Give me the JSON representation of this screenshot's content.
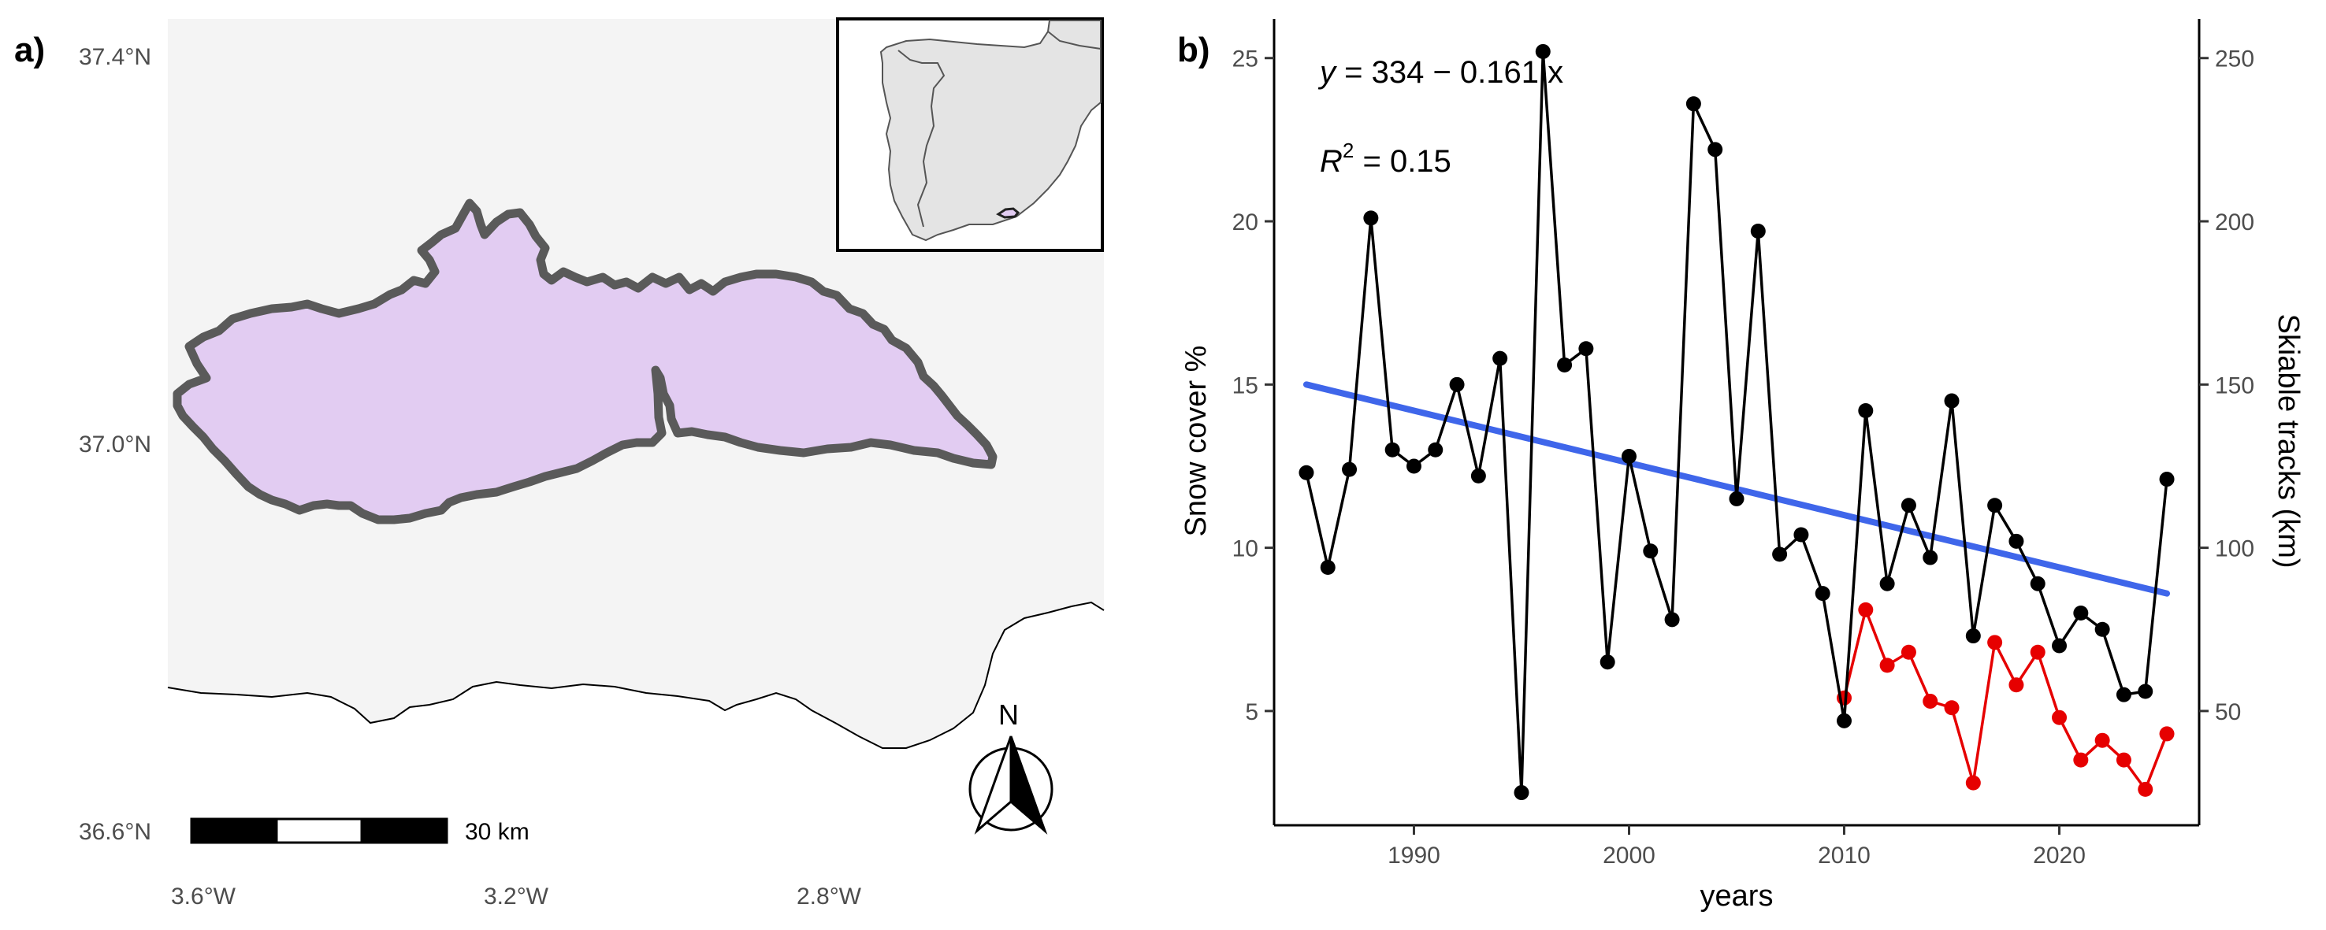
{
  "panel_a": {
    "label": "a)",
    "lat_ticks": [
      "37.4°N",
      "37.0°N",
      "36.6°N"
    ],
    "lon_ticks": [
      "3.6°W",
      "3.2°W",
      "2.8°W"
    ],
    "scale_bar_label": "30 km",
    "north_label": "N",
    "colors": {
      "region_fill": "#e2ccf2",
      "region_outline": "#5a5a5a",
      "land": "#f4f4f4"
    }
  },
  "panel_b": {
    "label": "b)",
    "equation": {
      "prefix": "y",
      "rest": " = 334 − 0.161 x"
    },
    "r2": {
      "prefix": "R",
      "sup": "2",
      "rest": " = 0.15"
    }
  },
  "chart_data": {
    "type": "line",
    "xlabel": "years",
    "ylabel": "Snow cover %",
    "y2label": "Skiable tracks (km)",
    "xlim": [
      1983.5,
      2026.5
    ],
    "ylim": [
      1.5,
      26.2
    ],
    "y2lim": [
      15,
      262
    ],
    "x_ticks": [
      1990,
      2000,
      2010,
      2020
    ],
    "y_ticks": [
      5,
      10,
      15,
      20,
      25
    ],
    "y2_ticks": [
      50,
      100,
      150,
      200,
      250
    ],
    "grid": false,
    "legend": "none",
    "series": [
      {
        "color": "#000000",
        "axis": "left",
        "x": [
          1985,
          1986,
          1987,
          1988,
          1989,
          1990,
          1991,
          1992,
          1993,
          1994,
          1995,
          1996,
          1997,
          1998,
          1999,
          2000,
          2001,
          2002,
          2003,
          2004,
          2005,
          2006,
          2007,
          2008,
          2009,
          2010,
          2011,
          2012,
          2013,
          2014,
          2015,
          2016,
          2017,
          2018,
          2019,
          2020,
          2021,
          2022,
          2023,
          2024,
          2025
        ],
        "values": [
          12.3,
          9.4,
          12.4,
          20.1,
          13.0,
          12.5,
          13.0,
          15.0,
          12.2,
          15.8,
          2.5,
          25.2,
          15.6,
          16.1,
          6.5,
          12.8,
          9.9,
          7.8,
          23.6,
          22.2,
          11.5,
          19.7,
          9.8,
          10.4,
          8.6,
          4.7,
          14.2,
          8.9,
          11.3,
          9.7,
          14.5,
          7.3,
          11.3,
          10.2,
          8.9,
          7.0,
          8.0,
          7.5,
          5.5,
          5.6,
          12.1
        ]
      },
      {
        "color": "#e60000",
        "axis": "right",
        "x": [
          2010,
          2011,
          2012,
          2013,
          2014,
          2015,
          2016,
          2017,
          2018,
          2019,
          2020,
          2021,
          2022,
          2023,
          2024,
          2025
        ],
        "values": [
          54,
          81,
          64,
          68,
          53,
          51,
          28,
          71,
          58,
          68,
          48,
          35,
          41,
          35,
          26,
          43
        ]
      },
      {
        "color": "#3f66ea",
        "axis": "left",
        "kind": "trend",
        "x": [
          1985,
          2025
        ],
        "values": [
          15.0,
          8.6
        ]
      }
    ]
  }
}
